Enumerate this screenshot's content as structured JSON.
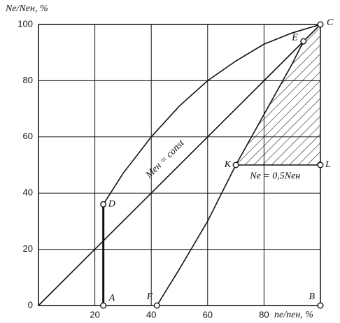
{
  "chart_data": {
    "type": "line",
    "y_label": "Ne/Neн, %",
    "x_label": "ne/nен, %",
    "xlim": [
      0,
      100
    ],
    "ylim": [
      0,
      100
    ],
    "xticks": [
      20,
      40,
      60,
      80
    ],
    "yticks": [
      0,
      20,
      40,
      60,
      80,
      100
    ],
    "grid": true,
    "series": [
      {
        "color": "#111",
        "x": [
          0,
          100
        ],
        "values": [
          0,
          100
        ]
      },
      {
        "color": "#111",
        "x": [
          23,
          30,
          40,
          50,
          60,
          70,
          80,
          90,
          100
        ],
        "values": [
          36,
          47,
          60,
          71,
          80,
          87,
          93,
          97,
          100
        ]
      },
      {
        "color": "#111",
        "x": [
          42,
          50,
          60,
          70,
          80,
          90,
          94
        ],
        "values": [
          0,
          13,
          30,
          50,
          68,
          86,
          94
        ]
      },
      {
        "color": "#111",
        "x": [
          23,
          23
        ],
        "values": [
          0,
          36
        ]
      },
      {
        "color": "#111",
        "x": [
          70,
          100
        ],
        "values": [
          50,
          50
        ]
      }
    ],
    "points": [
      {
        "label": "A",
        "x": 23,
        "y": 0
      },
      {
        "label": "B",
        "x": 100,
        "y": 0
      },
      {
        "label": "C",
        "x": 100,
        "y": 100
      },
      {
        "label": "D",
        "x": 23,
        "y": 36
      },
      {
        "label": "E",
        "x": 94,
        "y": 94
      },
      {
        "label": "F",
        "x": 42,
        "y": 0
      },
      {
        "label": "K",
        "x": 70,
        "y": 50
      },
      {
        "label": "L",
        "x": 100,
        "y": 50
      }
    ],
    "annotations": [
      "Mен = const",
      "Ne = 0,5Neн"
    ]
  }
}
